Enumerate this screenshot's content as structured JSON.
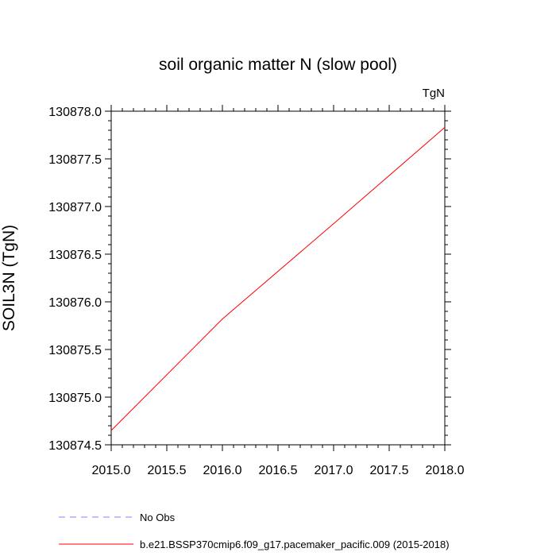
{
  "chart_data": {
    "type": "line",
    "title": "soil organic matter N (slow pool)",
    "units_label": "TgN",
    "ylabel": "SOIL3N  (TgN)",
    "xlabel": "",
    "xlim": [
      2015.0,
      2018.0
    ],
    "ylim": [
      130874.5,
      130878.0
    ],
    "x_ticks": [
      2015.0,
      2015.5,
      2016.0,
      2016.5,
      2017.0,
      2017.5,
      2018.0
    ],
    "x_tick_labels": [
      "2015.0",
      "2015.5",
      "2016.0",
      "2016.5",
      "2017.0",
      "2017.5",
      "2018.0"
    ],
    "y_ticks": [
      130874.5,
      130875.0,
      130875.5,
      130876.0,
      130876.5,
      130877.0,
      130877.5,
      130878.0
    ],
    "y_tick_labels": [
      "130874.5",
      "130875.0",
      "130875.5",
      "130876.0",
      "130876.5",
      "130877.0",
      "130877.5",
      "130878.0"
    ],
    "grid": false,
    "legend_position": "bottom",
    "series": [
      {
        "name": "No Obs",
        "color": "#8080ff",
        "dash": "dashed",
        "x": [],
        "y": []
      },
      {
        "name": "b.e21.BSSP370cmip6.f09_g17.pacemaker_pacific.009 (2015-2018)",
        "color": "#ff0000",
        "dash": "solid",
        "x": [
          2015.0,
          2016.0,
          2017.0,
          2018.0
        ],
        "y": [
          130874.65,
          130875.82,
          130876.82,
          130877.83
        ]
      }
    ]
  }
}
